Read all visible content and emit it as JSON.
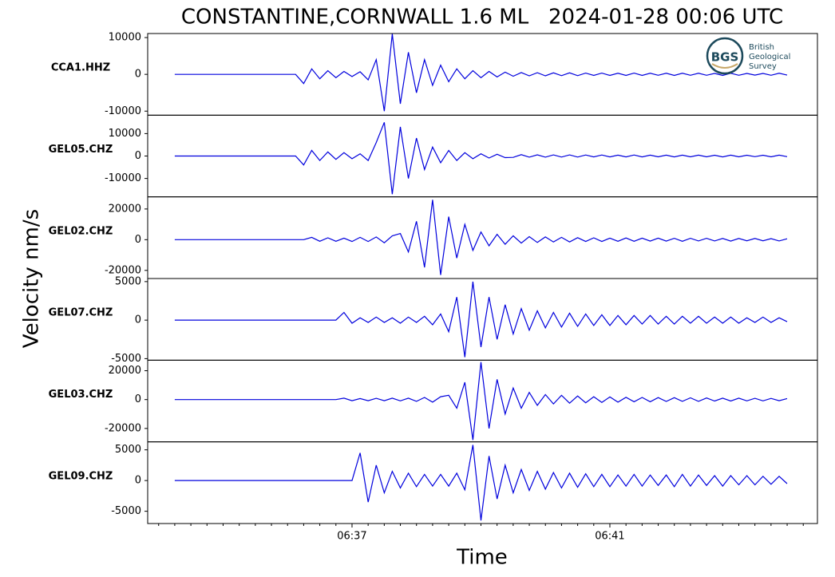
{
  "chart_data": {
    "type": "line",
    "title": "CONSTANTINE,CORNWALL 1.6 ML   2024-01-28 00:06 UTC",
    "xlabel": "Time",
    "ylabel": "Velocity nm/s",
    "color": "#0000dd",
    "xlim": [
      393.83,
      404.22
    ],
    "xticks": [
      {
        "value": 397,
        "label": "06:37"
      },
      {
        "value": 401,
        "label": "06:41"
      }
    ],
    "xminorticks": [
      394,
      394.25,
      394.5,
      394.75,
      395,
      395.25,
      395.5,
      395.75,
      396,
      396.25,
      396.5,
      396.75,
      397.25,
      397.5,
      397.75,
      398,
      398.25,
      398.5,
      398.75,
      399,
      399.25,
      399.5,
      399.75,
      400,
      400.25,
      400.5,
      400.75,
      401.25,
      401.5,
      401.75,
      402,
      402.25,
      402.5,
      402.75,
      403,
      403.25,
      403.5,
      403.75,
      404
    ],
    "x": [
      394.25,
      394.375,
      394.5,
      394.625,
      394.75,
      394.875,
      395,
      395.125,
      395.25,
      395.375,
      395.5,
      395.625,
      395.75,
      395.875,
      396,
      396.125,
      396.25,
      396.375,
      396.5,
      396.625,
      396.75,
      396.875,
      397,
      397.125,
      397.25,
      397.375,
      397.5,
      397.625,
      397.75,
      397.875,
      398,
      398.125,
      398.25,
      398.375,
      398.5,
      398.625,
      398.75,
      398.875,
      399,
      399.125,
      399.25,
      399.375,
      399.5,
      399.625,
      399.75,
      399.875,
      400,
      400.125,
      400.25,
      400.375,
      400.5,
      400.625,
      400.75,
      400.875,
      401,
      401.125,
      401.25,
      401.375,
      401.5,
      401.625,
      401.75,
      401.875,
      402,
      402.125,
      402.25,
      402.375,
      402.5,
      402.625,
      402.75,
      402.875,
      403,
      403.125,
      403.25,
      403.375,
      403.5,
      403.625,
      403.75
    ],
    "panels": [
      {
        "name": "CCA1.HHZ",
        "ylim": [
          -11100,
          11100
        ],
        "yticks": [
          -10000,
          0,
          10000
        ],
        "values": [
          0,
          0,
          0,
          0,
          0,
          0,
          0,
          0,
          0,
          0,
          0,
          0,
          0,
          0,
          0,
          0,
          -2500,
          1500,
          -1200,
          1000,
          -900,
          800,
          -600,
          700,
          -1500,
          4000,
          -10000,
          11000,
          -8000,
          6000,
          -5000,
          4000,
          -3000,
          2500,
          -2000,
          1500,
          -1200,
          1000,
          -900,
          800,
          -700,
          600,
          -500,
          500,
          -400,
          450,
          -400,
          400,
          -350,
          400,
          -350,
          350,
          -300,
          350,
          -300,
          300,
          -300,
          350,
          -300,
          300,
          -250,
          300,
          -300,
          300,
          -250,
          300,
          -250,
          250,
          -300,
          300,
          -250,
          250,
          -200,
          250,
          -250,
          300,
          -200
        ]
      },
      {
        "name": "GEL05.CHZ",
        "ylim": [
          -18200,
          18200
        ],
        "yticks": [
          -10000,
          0,
          10000
        ],
        "values": [
          0,
          0,
          0,
          0,
          0,
          0,
          0,
          0,
          0,
          0,
          0,
          0,
          0,
          0,
          0,
          0,
          -4000,
          2500,
          -2000,
          1800,
          -1500,
          1500,
          -1200,
          1000,
          -2000,
          6000,
          15000,
          -17000,
          13000,
          -10000,
          8000,
          -6000,
          4000,
          -3000,
          2500,
          -2000,
          1500,
          -1200,
          1000,
          -900,
          800,
          -700,
          -600,
          600,
          -500,
          550,
          -500,
          500,
          -450,
          500,
          -450,
          450,
          -400,
          450,
          -400,
          400,
          -400,
          450,
          -400,
          400,
          -350,
          400,
          -400,
          400,
          -350,
          400,
          -350,
          350,
          -400,
          400,
          -350,
          350,
          -300,
          350,
          -350,
          400,
          -300
        ]
      },
      {
        "name": "GEL02.CHZ",
        "ylim": [
          -25300,
          27900
        ],
        "yticks": [
          -20000,
          0,
          20000
        ],
        "values": [
          0,
          0,
          0,
          0,
          0,
          0,
          0,
          0,
          0,
          0,
          0,
          0,
          0,
          0,
          0,
          0,
          0,
          1500,
          -1000,
          1200,
          -1000,
          1000,
          -1200,
          1500,
          -1200,
          1800,
          -2000,
          2500,
          4000,
          -8000,
          12000,
          -18000,
          26000,
          -23000,
          15000,
          -12000,
          10000,
          -7000,
          5000,
          -4000,
          3500,
          -3000,
          2500,
          -2200,
          2000,
          -1800,
          1800,
          -1500,
          1500,
          -1500,
          1300,
          -1200,
          1200,
          -1200,
          1000,
          -1000,
          1100,
          -1000,
          1000,
          -900,
          1000,
          -900,
          900,
          -1000,
          900,
          -800,
          900,
          -800,
          800,
          -900,
          800,
          -700,
          800,
          -700,
          700,
          -800,
          600
        ]
      },
      {
        "name": "GEL07.CHZ",
        "ylim": [
          -5200,
          5400
        ],
        "yticks": [
          -5000,
          0,
          5000
        ],
        "values": [
          0,
          0,
          0,
          0,
          0,
          0,
          0,
          0,
          0,
          0,
          0,
          0,
          0,
          0,
          0,
          0,
          0,
          0,
          0,
          0,
          0,
          1000,
          -400,
          300,
          -300,
          400,
          -300,
          300,
          -400,
          400,
          -300,
          500,
          -600,
          800,
          -1500,
          3000,
          -4800,
          5000,
          -3500,
          3000,
          -2500,
          2000,
          -1800,
          1500,
          -1300,
          1200,
          -1000,
          1000,
          -900,
          900,
          -800,
          800,
          -700,
          700,
          -700,
          600,
          -600,
          600,
          -500,
          600,
          -500,
          500,
          -500,
          500,
          -400,
          500,
          -400,
          400,
          -400,
          400,
          -400,
          300,
          -300,
          400,
          -300,
          300,
          -200
        ]
      },
      {
        "name": "GEL03.CHZ",
        "ylim": [
          -29300,
          27300
        ],
        "yticks": [
          -20000,
          0,
          20000
        ],
        "values": [
          0,
          0,
          0,
          0,
          0,
          0,
          0,
          0,
          0,
          0,
          0,
          0,
          0,
          0,
          0,
          0,
          0,
          0,
          0,
          0,
          0,
          1000,
          -800,
          700,
          -800,
          900,
          -800,
          1000,
          -900,
          1000,
          -1200,
          1500,
          -1800,
          2000,
          3000,
          -6000,
          12000,
          -28000,
          26000,
          -20000,
          14000,
          -10000,
          8000,
          -6000,
          5000,
          -4000,
          3500,
          -3000,
          3000,
          -2500,
          2500,
          -2200,
          2000,
          -2000,
          1800,
          -1800,
          1600,
          -1500,
          1500,
          -1500,
          1400,
          -1300,
          1300,
          -1200,
          1200,
          -1200,
          1100,
          -1000,
          1000,
          -1000,
          1000,
          -900,
          900,
          -900,
          800,
          -800,
          700
        ]
      },
      {
        "name": "GEL09.CHZ",
        "ylim": [
          -7000,
          6300
        ],
        "yticks": [
          -5000,
          0,
          5000
        ],
        "values": [
          0,
          0,
          0,
          0,
          0,
          0,
          0,
          0,
          0,
          0,
          0,
          0,
          0,
          0,
          0,
          0,
          0,
          0,
          0,
          0,
          0,
          0,
          0,
          4500,
          -3500,
          2500,
          -2000,
          1500,
          -1200,
          1200,
          -1000,
          1000,
          -900,
          1000,
          -900,
          1200,
          -1500,
          5800,
          -6500,
          4000,
          -3000,
          2500,
          -2000,
          1800,
          -1600,
          1500,
          -1400,
          1300,
          -1200,
          1200,
          -1100,
          1100,
          -1000,
          1000,
          -1000,
          900,
          -900,
          1000,
          -900,
          900,
          -800,
          900,
          -1000,
          1000,
          -900,
          900,
          -800,
          800,
          -900,
          800,
          -700,
          800,
          -700,
          700,
          -600,
          700,
          -500
        ]
      }
    ]
  },
  "logo": {
    "abbr": "BGS",
    "lines": [
      "British",
      "Geological",
      "Survey"
    ]
  }
}
